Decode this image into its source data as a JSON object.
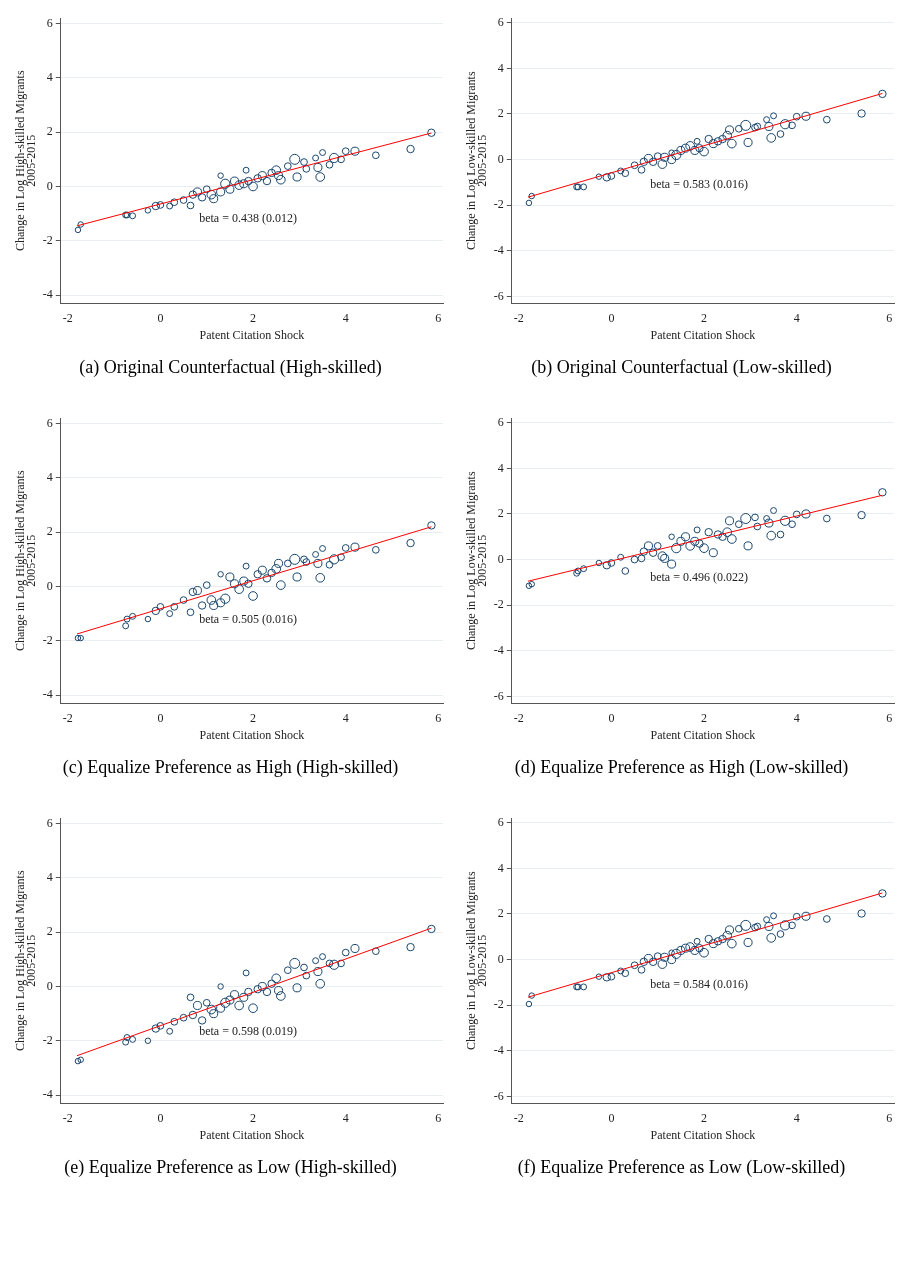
{
  "chart_data": [
    {
      "type": "bubble",
      "title": "(a) Original Counterfactual (High-skilled)",
      "xlabel": "Patent Citation Shock",
      "ylabel": "Change in Log High-skilled Migrants\n2005-2015",
      "xlim": [
        -2.15,
        6.1
      ],
      "xticks": [
        -2,
        0,
        2,
        4,
        6
      ],
      "ylim": [
        -4.3,
        6.2
      ],
      "yticks": [
        -4,
        -2,
        0,
        2,
        4,
        6
      ],
      "grid": "y",
      "annotations": [
        "beta = 0.438 (0.012)"
      ],
      "series": [
        {
          "type": "bubble",
          "color": "#1a476f",
          "x": [
            -1.78,
            -1.72,
            -0.75,
            -0.72,
            -0.6,
            -0.27,
            -0.1,
            0,
            0.2,
            0.3,
            0.5,
            0.65,
            0.7,
            0.8,
            0.9,
            1.0,
            1.1,
            1.15,
            1.3,
            1.3,
            1.4,
            1.5,
            1.6,
            1.7,
            1.8,
            1.85,
            1.9,
            2.0,
            2.1,
            2.2,
            2.3,
            2.4,
            2.5,
            2.55,
            2.6,
            2.75,
            2.9,
            2.95,
            3.1,
            3.15,
            3.35,
            3.4,
            3.45,
            3.5,
            3.65,
            3.75,
            3.9,
            4.0,
            4.2,
            4.65,
            5.4,
            5.85
          ],
          "values": [
            -1.6,
            -1.4,
            -1.05,
            -1.05,
            -1.08,
            -0.88,
            -0.72,
            -0.68,
            -0.72,
            -0.58,
            -0.5,
            -0.7,
            -0.3,
            -0.2,
            -0.4,
            -0.1,
            -0.3,
            -0.45,
            0.4,
            -0.2,
            0.1,
            -0.1,
            0.2,
            0.05,
            0.1,
            0.6,
            0.2,
            0.0,
            0.3,
            0.4,
            0.2,
            0.5,
            0.6,
            0.4,
            0.25,
            0.75,
            1.0,
            0.35,
            0.9,
            0.65,
            1.05,
            0.7,
            0.35,
            1.25,
            0.8,
            1.05,
            1.0,
            1.3,
            1.3,
            1.15,
            1.38,
            1.98
          ],
          "sizes": [
            0.3,
            0.3,
            0.35,
            0.35,
            0.35,
            0.3,
            0.55,
            0.45,
            0.35,
            0.45,
            0.45,
            0.45,
            0.55,
            0.65,
            0.55,
            0.45,
            0.75,
            0.65,
            0.3,
            0.65,
            0.85,
            0.65,
            0.65,
            0.75,
            0.65,
            0.35,
            0.55,
            0.75,
            0.55,
            0.65,
            0.55,
            0.55,
            0.75,
            0.65,
            0.75,
            0.45,
            1,
            0.65,
            0.45,
            0.45,
            0.35,
            0.65,
            0.75,
            0.35,
            0.45,
            0.85,
            0.45,
            0.45,
            0.65,
            0.45,
            0.55,
            0.55
          ]
        },
        {
          "type": "line",
          "color": "#ff0000",
          "x": [
            -1.8,
            5.85
          ],
          "values": [
            -1.45,
            1.97
          ]
        }
      ]
    },
    {
      "type": "bubble",
      "title": "(b) Original Counterfactual (Low-skilled)",
      "xlabel": "Patent Citation Shock",
      "ylabel": "Change in Log Low-skilled Migrants\n2005-2015",
      "xlim": [
        -2.15,
        6.1
      ],
      "xticks": [
        -2,
        0,
        2,
        4,
        6
      ],
      "ylim": [
        -6.3,
        6.2
      ],
      "yticks": [
        -6,
        -4,
        -2,
        0,
        2,
        4,
        6
      ],
      "grid": "y",
      "annotations": [
        "beta = 0.583 (0.016)"
      ],
      "series": [
        {
          "type": "bubble",
          "color": "#1a476f",
          "x": [
            -1.78,
            -1.72,
            -0.75,
            -0.72,
            -0.6,
            -0.27,
            -0.1,
            0,
            0.2,
            0.3,
            0.5,
            0.65,
            0.7,
            0.8,
            0.9,
            1.0,
            1.1,
            1.15,
            1.3,
            1.3,
            1.4,
            1.5,
            1.6,
            1.7,
            1.8,
            1.85,
            1.9,
            2.0,
            2.1,
            2.2,
            2.3,
            2.4,
            2.5,
            2.55,
            2.6,
            2.75,
            2.9,
            2.95,
            3.1,
            3.15,
            3.35,
            3.4,
            3.45,
            3.5,
            3.65,
            3.75,
            3.9,
            4.0,
            4.2,
            4.65,
            5.4,
            5.85
          ],
          "values": [
            -1.9,
            -1.6,
            -1.2,
            -1.2,
            -1.2,
            -0.75,
            -0.78,
            -0.72,
            -0.5,
            -0.6,
            -0.25,
            -0.45,
            -0.1,
            0.05,
            -0.1,
            0.15,
            -0.2,
            0.1,
            0.3,
            0.0,
            0.2,
            0.4,
            0.5,
            0.6,
            0.4,
            0.8,
            0.5,
            0.35,
            0.9,
            0.7,
            0.8,
            0.9,
            1.05,
            1.3,
            0.7,
            1.35,
            1.5,
            0.75,
            1.4,
            1.45,
            1.75,
            1.45,
            0.95,
            1.92,
            1.12,
            1.55,
            1.5,
            1.88,
            1.9,
            1.75,
            2.02,
            2.88
          ],
          "sizes": [
            0.3,
            0.3,
            0.35,
            0.35,
            0.35,
            0.3,
            0.55,
            0.45,
            0.35,
            0.45,
            0.45,
            0.45,
            0.55,
            0.65,
            0.55,
            0.45,
            0.75,
            0.65,
            0.3,
            0.65,
            0.85,
            0.65,
            0.65,
            0.75,
            0.65,
            0.35,
            0.55,
            0.75,
            0.55,
            0.65,
            0.55,
            0.55,
            0.75,
            0.65,
            0.75,
            0.45,
            1,
            0.65,
            0.45,
            0.45,
            0.35,
            0.65,
            0.75,
            0.35,
            0.45,
            0.85,
            0.45,
            0.45,
            0.65,
            0.45,
            0.55,
            0.55
          ]
        },
        {
          "type": "line",
          "color": "#ff0000",
          "x": [
            -1.8,
            5.85
          ],
          "values": [
            -1.65,
            2.9
          ]
        }
      ]
    },
    {
      "type": "bubble",
      "title": "(c) Equalize Preference as High (High-skilled)",
      "xlabel": "Patent Citation Shock",
      "ylabel": "Change in Log High-skilled Migrants\n2005-2015",
      "xlim": [
        -2.15,
        6.1
      ],
      "xticks": [
        -2,
        0,
        2,
        4,
        6
      ],
      "ylim": [
        -4.3,
        6.2
      ],
      "yticks": [
        -4,
        -2,
        0,
        2,
        4,
        6
      ],
      "grid": "y",
      "annotations": [
        "beta = 0.505 (0.016)"
      ],
      "series": [
        {
          "type": "bubble",
          "color": "#1a476f",
          "x": [
            -1.78,
            -1.72,
            -0.75,
            -0.72,
            -0.6,
            -0.27,
            -0.1,
            0,
            0.2,
            0.3,
            0.5,
            0.65,
            0.7,
            0.8,
            0.9,
            1.0,
            1.1,
            1.15,
            1.3,
            1.3,
            1.4,
            1.5,
            1.6,
            1.7,
            1.8,
            1.85,
            1.9,
            2.0,
            2.1,
            2.2,
            2.3,
            2.4,
            2.5,
            2.55,
            2.6,
            2.75,
            2.9,
            2.95,
            3.1,
            3.15,
            3.35,
            3.4,
            3.45,
            3.5,
            3.65,
            3.75,
            3.9,
            4.0,
            4.2,
            4.65,
            5.4,
            5.85
          ],
          "values": [
            -1.9,
            -1.9,
            -1.45,
            -1.2,
            -1.1,
            -1.2,
            -0.9,
            -0.75,
            -1.0,
            -0.75,
            -0.5,
            -0.95,
            -0.2,
            -0.15,
            -0.7,
            0.05,
            -0.5,
            -0.7,
            0.45,
            -0.6,
            -0.45,
            0.35,
            0.1,
            -0.1,
            0.2,
            0.75,
            0.1,
            -0.35,
            0.45,
            0.6,
            0.3,
            0.5,
            0.65,
            0.85,
            0.05,
            0.85,
            1.0,
            0.35,
            1.0,
            0.9,
            1.18,
            0.85,
            0.32,
            1.4,
            0.8,
            1.0,
            1.08,
            1.42,
            1.45,
            1.35,
            1.6,
            2.25
          ],
          "sizes": [
            0.3,
            0.3,
            0.35,
            0.35,
            0.35,
            0.3,
            0.55,
            0.45,
            0.35,
            0.45,
            0.45,
            0.45,
            0.55,
            0.65,
            0.55,
            0.45,
            0.75,
            0.65,
            0.3,
            0.65,
            0.85,
            0.65,
            0.65,
            0.75,
            0.65,
            0.35,
            0.55,
            0.75,
            0.55,
            0.65,
            0.55,
            0.55,
            0.75,
            0.65,
            0.75,
            0.45,
            1,
            0.65,
            0.45,
            0.45,
            0.35,
            0.65,
            0.75,
            0.35,
            0.45,
            0.85,
            0.45,
            0.45,
            0.65,
            0.45,
            0.55,
            0.55
          ]
        },
        {
          "type": "line",
          "color": "#ff0000",
          "x": [
            -1.8,
            5.85
          ],
          "values": [
            -1.75,
            2.2
          ]
        }
      ]
    },
    {
      "type": "bubble",
      "title": "(d) Equalize Preference as High (Low-skilled)",
      "xlabel": "Patent Citation Shock",
      "ylabel": "Change in Log Low-skilled Migrants\n2005-2015",
      "xlim": [
        -2.15,
        6.1
      ],
      "xticks": [
        -2,
        0,
        2,
        4,
        6
      ],
      "ylim": [
        -6.3,
        6.2
      ],
      "yticks": [
        -6,
        -4,
        -2,
        0,
        2,
        4,
        6
      ],
      "grid": "y",
      "annotations": [
        "beta = 0.496 (0.022)"
      ],
      "series": [
        {
          "type": "bubble",
          "color": "#1a476f",
          "x": [
            -1.78,
            -1.72,
            -0.75,
            -0.72,
            -0.6,
            -0.27,
            -0.1,
            0,
            0.2,
            0.3,
            0.5,
            0.65,
            0.7,
            0.8,
            0.9,
            1.0,
            1.1,
            1.15,
            1.3,
            1.3,
            1.4,
            1.5,
            1.6,
            1.7,
            1.8,
            1.85,
            1.9,
            2.0,
            2.1,
            2.2,
            2.3,
            2.4,
            2.5,
            2.55,
            2.6,
            2.75,
            2.9,
            2.95,
            3.1,
            3.15,
            3.35,
            3.4,
            3.45,
            3.5,
            3.65,
            3.75,
            3.9,
            4.0,
            4.2,
            4.65,
            5.4,
            5.85
          ],
          "values": [
            -1.15,
            -1.08,
            -0.6,
            -0.5,
            -0.4,
            -0.15,
            -0.25,
            -0.15,
            0.1,
            -0.5,
            0.0,
            0.05,
            0.35,
            0.6,
            0.3,
            0.6,
            0.15,
            0.05,
            1.0,
            -0.2,
            0.5,
            0.8,
            1.0,
            0.6,
            0.8,
            1.3,
            0.7,
            0.5,
            1.2,
            0.3,
            1.1,
            1.0,
            1.2,
            1.7,
            0.9,
            1.55,
            1.8,
            0.6,
            1.85,
            1.45,
            1.8,
            1.6,
            1.05,
            2.15,
            1.1,
            1.7,
            1.55,
            1.98,
            2.0,
            1.8,
            1.95,
            2.95
          ],
          "sizes": [
            0.3,
            0.3,
            0.35,
            0.35,
            0.35,
            0.3,
            0.55,
            0.45,
            0.35,
            0.45,
            0.45,
            0.45,
            0.55,
            0.65,
            0.55,
            0.45,
            0.75,
            0.65,
            0.3,
            0.65,
            0.85,
            0.65,
            0.65,
            0.75,
            0.65,
            0.35,
            0.55,
            0.75,
            0.55,
            0.65,
            0.55,
            0.55,
            0.75,
            0.65,
            0.75,
            0.45,
            1,
            0.65,
            0.45,
            0.45,
            0.35,
            0.65,
            0.75,
            0.35,
            0.45,
            0.85,
            0.45,
            0.45,
            0.65,
            0.45,
            0.55,
            0.55
          ]
        },
        {
          "type": "line",
          "color": "#ff0000",
          "x": [
            -1.8,
            5.85
          ],
          "values": [
            -0.95,
            2.82
          ]
        }
      ]
    },
    {
      "type": "bubble",
      "title": "(e) Equalize Preference as Low (High-skilled)",
      "xlabel": "Patent Citation Shock",
      "ylabel": "Change in Log High-skilled Migrants\n2005-2015",
      "xlim": [
        -2.15,
        6.1
      ],
      "xticks": [
        -2,
        0,
        2,
        4,
        6
      ],
      "ylim": [
        -4.3,
        6.2
      ],
      "yticks": [
        -4,
        -2,
        0,
        2,
        4,
        6
      ],
      "grid": "y",
      "annotations": [
        "beta = 0.598 (0.019)"
      ],
      "series": [
        {
          "type": "bubble",
          "color": "#1a476f",
          "x": [
            -1.78,
            -1.72,
            -0.75,
            -0.72,
            -0.6,
            -0.27,
            -0.1,
            0,
            0.2,
            0.3,
            0.5,
            0.65,
            0.7,
            0.8,
            0.9,
            1.0,
            1.1,
            1.15,
            1.3,
            1.3,
            1.4,
            1.5,
            1.6,
            1.7,
            1.8,
            1.85,
            1.9,
            2.0,
            2.1,
            2.2,
            2.3,
            2.4,
            2.5,
            2.55,
            2.6,
            2.75,
            2.9,
            2.95,
            3.1,
            3.15,
            3.35,
            3.4,
            3.45,
            3.5,
            3.65,
            3.75,
            3.9,
            4.0,
            4.2,
            4.65,
            5.4,
            5.85
          ],
          "values": [
            -2.75,
            -2.7,
            -2.05,
            -1.88,
            -1.95,
            -2.0,
            -1.55,
            -1.45,
            -1.65,
            -1.3,
            -1.15,
            -0.4,
            -1.05,
            -0.7,
            -1.25,
            -0.6,
            -0.85,
            -1.0,
            0.0,
            -0.8,
            -0.6,
            -0.5,
            -0.3,
            -0.7,
            -0.4,
            0.5,
            -0.2,
            -0.8,
            -0.1,
            0.0,
            -0.2,
            0.1,
            0.3,
            -0.15,
            -0.35,
            0.6,
            0.85,
            -0.05,
            0.7,
            0.4,
            0.95,
            0.55,
            0.1,
            1.1,
            0.85,
            0.8,
            0.85,
            1.25,
            1.4,
            1.3,
            1.45,
            2.12
          ],
          "sizes": [
            0.3,
            0.3,
            0.35,
            0.35,
            0.35,
            0.3,
            0.55,
            0.45,
            0.35,
            0.45,
            0.45,
            0.45,
            0.55,
            0.65,
            0.55,
            0.45,
            0.75,
            0.65,
            0.3,
            0.65,
            0.85,
            0.65,
            0.65,
            0.75,
            0.65,
            0.35,
            0.55,
            0.75,
            0.55,
            0.65,
            0.55,
            0.55,
            0.75,
            0.65,
            0.75,
            0.45,
            1,
            0.65,
            0.45,
            0.45,
            0.35,
            0.65,
            0.75,
            0.35,
            0.45,
            0.85,
            0.45,
            0.45,
            0.65,
            0.45,
            0.55,
            0.55
          ]
        },
        {
          "type": "line",
          "color": "#ff0000",
          "x": [
            -1.8,
            5.85
          ],
          "values": [
            -2.55,
            2.15
          ]
        }
      ]
    },
    {
      "type": "bubble",
      "title": "(f) Equalize Preference as Low (Low-skilled)",
      "xlabel": "Patent Citation Shock",
      "ylabel": "Change in Log Low-skilled Migrants\n2005-2015",
      "xlim": [
        -2.15,
        6.1
      ],
      "xticks": [
        -2,
        0,
        2,
        4,
        6
      ],
      "ylim": [
        -6.3,
        6.2
      ],
      "yticks": [
        -6,
        -4,
        -2,
        0,
        2,
        4,
        6
      ],
      "grid": "y",
      "annotations": [
        "beta = 0.584 (0.016)"
      ],
      "series": [
        {
          "type": "bubble",
          "color": "#1a476f",
          "x": [
            -1.78,
            -1.72,
            -0.75,
            -0.72,
            -0.6,
            -0.27,
            -0.1,
            0,
            0.2,
            0.3,
            0.5,
            0.65,
            0.7,
            0.8,
            0.9,
            1.0,
            1.1,
            1.15,
            1.3,
            1.3,
            1.4,
            1.5,
            1.6,
            1.7,
            1.8,
            1.85,
            1.9,
            2.0,
            2.1,
            2.2,
            2.3,
            2.4,
            2.5,
            2.55,
            2.6,
            2.75,
            2.9,
            2.95,
            3.1,
            3.15,
            3.35,
            3.4,
            3.45,
            3.5,
            3.65,
            3.75,
            3.9,
            4.0,
            4.2,
            4.65,
            5.4,
            5.85
          ],
          "values": [
            -1.95,
            -1.58,
            -1.2,
            -1.2,
            -1.2,
            -0.75,
            -0.78,
            -0.75,
            -0.5,
            -0.6,
            -0.25,
            -0.45,
            -0.1,
            0.05,
            -0.1,
            0.15,
            -0.2,
            0.1,
            0.3,
            0.0,
            0.25,
            0.4,
            0.5,
            0.55,
            0.4,
            0.8,
            0.5,
            0.3,
            0.9,
            0.7,
            0.8,
            0.9,
            1.05,
            1.3,
            0.7,
            1.35,
            1.5,
            0.75,
            1.4,
            1.45,
            1.75,
            1.45,
            0.95,
            1.92,
            1.12,
            1.5,
            1.5,
            1.88,
            1.9,
            1.78,
            2.02,
            2.9
          ],
          "sizes": [
            0.3,
            0.3,
            0.35,
            0.35,
            0.35,
            0.3,
            0.55,
            0.45,
            0.35,
            0.45,
            0.45,
            0.45,
            0.55,
            0.65,
            0.55,
            0.45,
            0.75,
            0.65,
            0.3,
            0.65,
            0.85,
            0.65,
            0.65,
            0.75,
            0.65,
            0.35,
            0.55,
            0.75,
            0.55,
            0.65,
            0.55,
            0.55,
            0.75,
            0.65,
            0.75,
            0.45,
            1,
            0.65,
            0.45,
            0.45,
            0.35,
            0.65,
            0.75,
            0.35,
            0.45,
            0.85,
            0.45,
            0.45,
            0.65,
            0.45,
            0.55,
            0.55
          ]
        },
        {
          "type": "line",
          "color": "#ff0000",
          "x": [
            -1.8,
            5.85
          ],
          "values": [
            -1.65,
            2.92
          ]
        }
      ]
    }
  ]
}
